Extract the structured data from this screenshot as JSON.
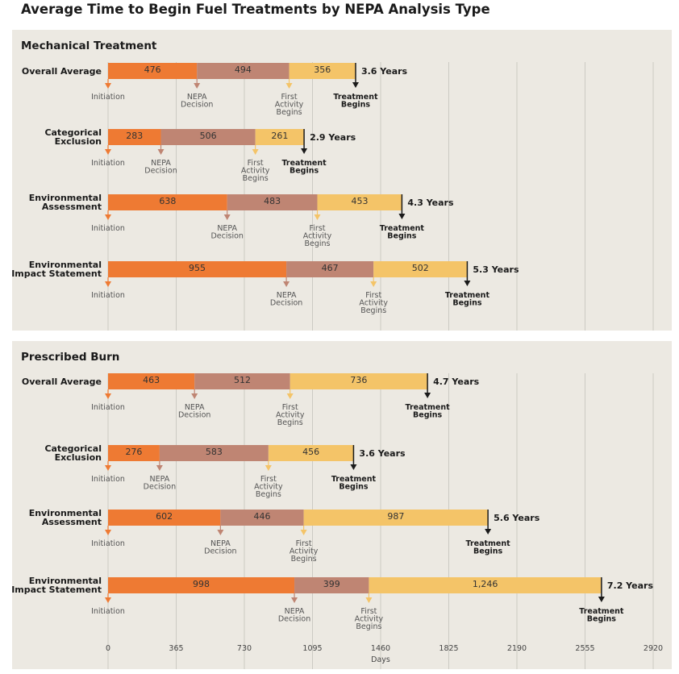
{
  "title": "Average Time to Begin Fuel Treatments by NEPA Analysis Type",
  "xlabel": "Days",
  "colors": {
    "panel_bg": "#ece9e2",
    "grid": "#cccac3",
    "initiation": "#ee7a33",
    "nepa": "#bf8573",
    "first_activity": "#f4c468",
    "treatment": "#1a1a1a"
  },
  "milestone_labels": {
    "initiation": "Initiation",
    "nepa": [
      "NEPA",
      "Decision"
    ],
    "first_activity": [
      "First",
      "Activity",
      "Begins"
    ],
    "treatment": [
      "Treatment",
      "Begins"
    ]
  },
  "chart_data": {
    "type": "bar",
    "orientation": "horizontal",
    "stacked": true,
    "xlabel": "Days",
    "xlim": [
      0,
      2920
    ],
    "xticks": [
      "0",
      "365",
      "730",
      "1095",
      "1460",
      "1825",
      "2190",
      "2555",
      "2920"
    ],
    "grid": true,
    "segments": [
      "Initiation to NEPA Decision",
      "NEPA Decision to First Activity",
      "First Activity to Treatment"
    ],
    "panels": [
      {
        "title": "Mechanical Treatment",
        "rows": [
          {
            "label": [
              "Overall Average"
            ],
            "values": [
              476,
              494,
              356
            ],
            "value_labels": [
              "476",
              "494",
              "356"
            ],
            "total_label": "3.6 Years"
          },
          {
            "label": [
              "Categorical",
              "Exclusion"
            ],
            "values": [
              283,
              506,
              261
            ],
            "value_labels": [
              "283",
              "506",
              "261"
            ],
            "total_label": "2.9 Years"
          },
          {
            "label": [
              "Environmental",
              "Assessment"
            ],
            "values": [
              638,
              483,
              453
            ],
            "value_labels": [
              "638",
              "483",
              "453"
            ],
            "total_label": "4.3 Years"
          },
          {
            "label": [
              "Environmental",
              "Impact Statement"
            ],
            "values": [
              955,
              467,
              502
            ],
            "value_labels": [
              "955",
              "467",
              "502"
            ],
            "total_label": "5.3 Years"
          }
        ]
      },
      {
        "title": "Prescribed Burn",
        "rows": [
          {
            "label": [
              "Overall Average"
            ],
            "values": [
              463,
              512,
              736
            ],
            "value_labels": [
              "463",
              "512",
              "736"
            ],
            "total_label": "4.7 Years"
          },
          {
            "label": [
              "Categorical",
              "Exclusion"
            ],
            "values": [
              276,
              583,
              456
            ],
            "value_labels": [
              "276",
              "583",
              "456"
            ],
            "total_label": "3.6 Years"
          },
          {
            "label": [
              "Environmental",
              "Assessment"
            ],
            "values": [
              602,
              446,
              987
            ],
            "value_labels": [
              "602",
              "446",
              "987"
            ],
            "total_label": "5.6 Years"
          },
          {
            "label": [
              "Environmental",
              "Impact Statement"
            ],
            "values": [
              998,
              399,
              1246
            ],
            "value_labels": [
              "998",
              "399",
              "1,246"
            ],
            "total_label": "7.2 Years"
          }
        ]
      }
    ]
  }
}
